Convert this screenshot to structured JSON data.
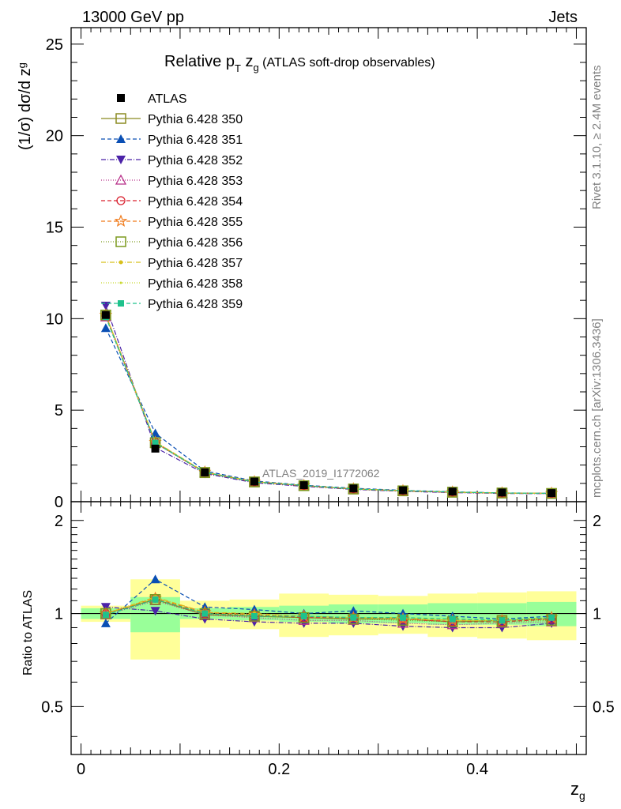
{
  "header": {
    "energy": "13000 GeV pp",
    "category": "Jets",
    "title_main": "Relative p",
    "title_sub_T": "T",
    "title_z": " z",
    "title_sub_g": "g",
    "title_rest": " (ATLAS soft-drop observables)",
    "watermark": "ATLAS_2019_I1772062"
  },
  "side": {
    "rivet": "Rivet 3.1.10, ≥ 2.4M events",
    "mcplots": "mcplots.cern.ch [arXiv:1306.3436]"
  },
  "axes": {
    "top_ylabel_pre": "(1/σ) dσ/d z",
    "top_ylabel_sub": "g",
    "bottom_ylabel": "Ratio to ATLAS",
    "xlabel": "z",
    "xlabel_sub": "g",
    "top_yticks": [
      "0",
      "5",
      "10",
      "15",
      "20",
      "25"
    ],
    "bottom_yticks": [
      "0.5",
      "1",
      "2"
    ],
    "xticks": [
      "0",
      "0.2",
      "0.4"
    ]
  },
  "chart_data": {
    "type": "line",
    "x_edges": [
      0.0,
      0.05,
      0.1,
      0.15,
      0.2,
      0.25,
      0.3,
      0.35,
      0.4,
      0.45,
      0.5
    ],
    "x": [
      0.025,
      0.075,
      0.125,
      0.175,
      0.225,
      0.275,
      0.325,
      0.375,
      0.425,
      0.475
    ],
    "xlim": [
      -0.01,
      0.51
    ],
    "ylim_top": [
      0,
      25.9
    ],
    "ylim_ratio": [
      0.35,
      2.3
    ],
    "ratio_log": true,
    "data": {
      "name": "ATLAS",
      "values": [
        10.2,
        2.9,
        1.6,
        1.1,
        0.9,
        0.72,
        0.62,
        0.55,
        0.5,
        0.47
      ]
    },
    "band_inner": [
      0.04,
      0.13,
      0.04,
      0.05,
      0.06,
      0.07,
      0.07,
      0.08,
      0.08,
      0.09
    ],
    "band_outer": [
      0.06,
      0.29,
      0.1,
      0.11,
      0.16,
      0.15,
      0.14,
      0.16,
      0.17,
      0.18
    ],
    "series": [
      {
        "name": "Pythia 6.428 350",
        "color": "#8b8b22",
        "dash": "",
        "marker": "square-open",
        "ratio": [
          1.0,
          1.11,
          0.99,
          0.98,
          0.97,
          0.96,
          0.96,
          0.94,
          0.95,
          0.96
        ]
      },
      {
        "name": "Pythia 6.428 351",
        "color": "#0a4fb4",
        "dash": "5,3",
        "marker": "triangle-up",
        "ratio": [
          0.93,
          1.29,
          1.05,
          1.03,
          1.0,
          1.02,
          1.0,
          0.98,
          0.96,
          0.98
        ]
      },
      {
        "name": "Pythia 6.428 352",
        "color": "#4b22a8",
        "dash": "6,2,1,2",
        "marker": "triangle-down",
        "ratio": [
          1.05,
          1.02,
          0.96,
          0.94,
          0.93,
          0.93,
          0.91,
          0.9,
          0.9,
          0.93
        ]
      },
      {
        "name": "Pythia 6.428 353",
        "color": "#b8308a",
        "dash": "1,2",
        "marker": "triangle-open",
        "ratio": [
          0.99,
          1.1,
          0.99,
          0.97,
          0.95,
          0.95,
          0.93,
          0.92,
          0.93,
          0.94
        ]
      },
      {
        "name": "Pythia 6.428 354",
        "color": "#d9212f",
        "dash": "5,3",
        "marker": "circle-open",
        "ratio": [
          1.0,
          1.12,
          1.0,
          0.99,
          0.97,
          0.97,
          0.96,
          0.94,
          0.94,
          0.96
        ]
      },
      {
        "name": "Pythia 6.428 355",
        "color": "#f07a1a",
        "dash": "5,3",
        "marker": "star",
        "ratio": [
          1.0,
          1.12,
          1.01,
          0.99,
          0.98,
          0.97,
          0.96,
          0.95,
          0.95,
          0.97
        ]
      },
      {
        "name": "Pythia 6.428 356",
        "color": "#7c9a1e",
        "dash": "1,2",
        "marker": "square-open",
        "ratio": [
          1.0,
          1.11,
          1.0,
          0.98,
          0.97,
          0.96,
          0.95,
          0.94,
          0.94,
          0.95
        ]
      },
      {
        "name": "Pythia 6.428 357",
        "color": "#d8c01c",
        "dash": "6,2,1,2",
        "marker": "dot",
        "ratio": [
          1.0,
          1.13,
          1.01,
          1.0,
          0.98,
          0.97,
          0.97,
          0.95,
          0.95,
          0.97
        ]
      },
      {
        "name": "Pythia 6.428 358",
        "color": "#c8d82a",
        "dash": "1,2",
        "marker": "dot-small",
        "ratio": [
          1.0,
          1.12,
          1.0,
          0.99,
          0.98,
          0.97,
          0.96,
          0.95,
          0.95,
          0.96
        ]
      },
      {
        "name": "Pythia 6.428 359",
        "color": "#1ec28c",
        "dash": "5,3",
        "marker": "square-filled",
        "ratio": [
          0.99,
          1.11,
          1.0,
          0.98,
          0.98,
          0.97,
          0.97,
          0.96,
          0.95,
          0.97
        ]
      }
    ]
  }
}
